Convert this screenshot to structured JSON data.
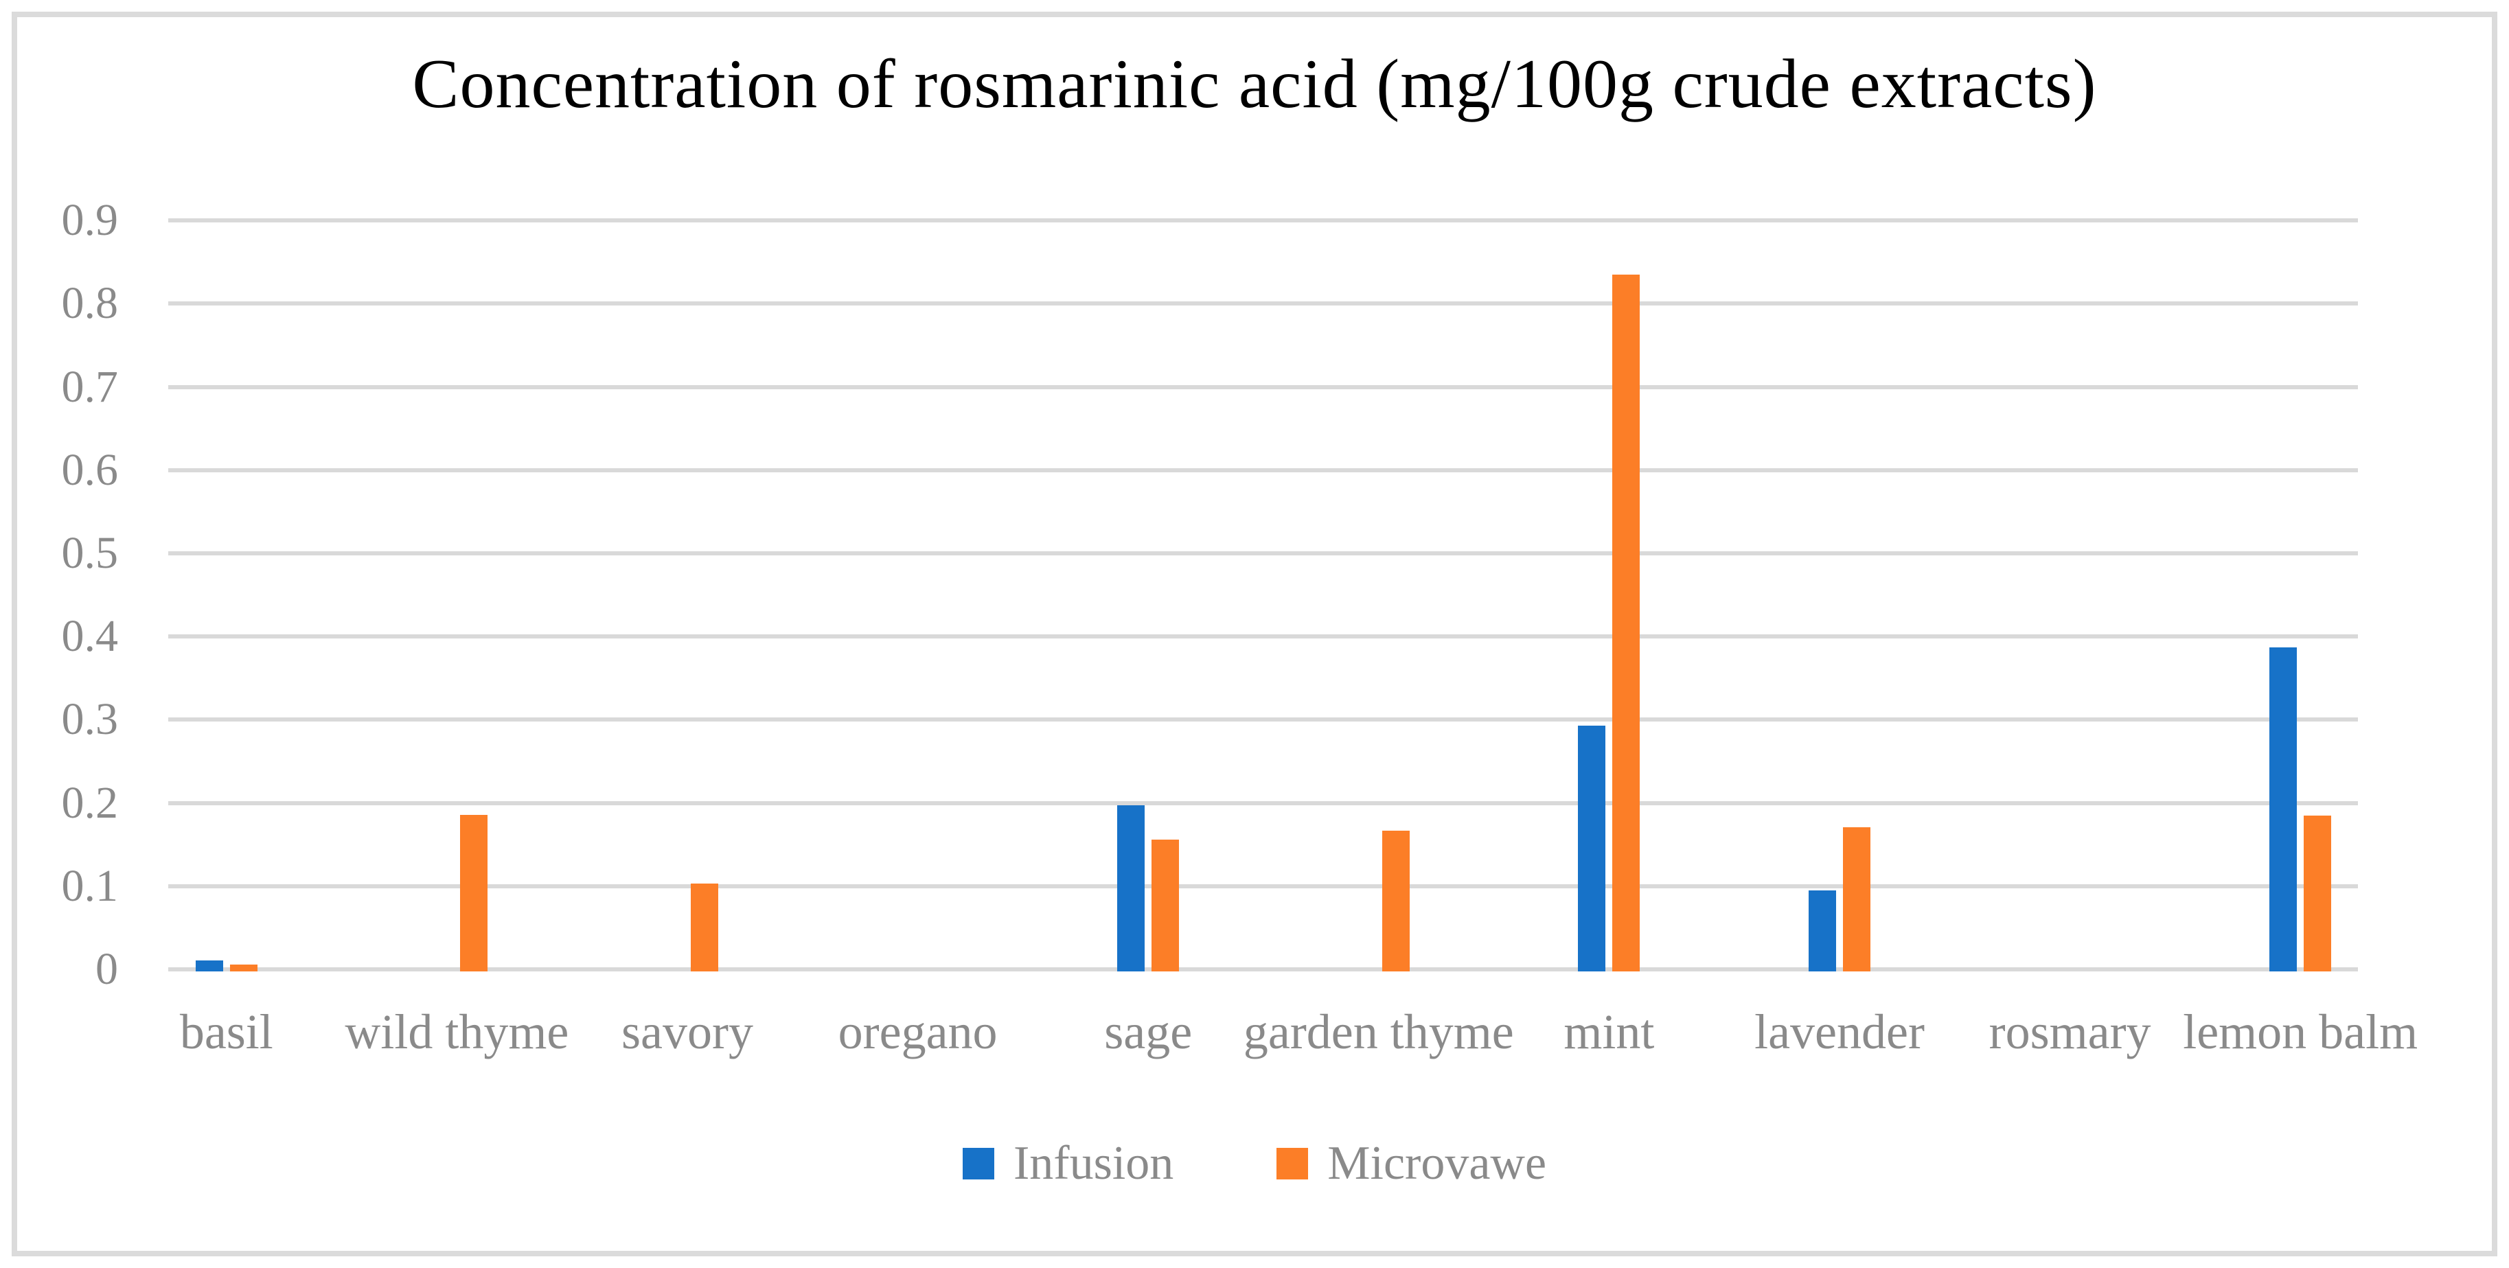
{
  "page": {
    "background": "#ffffff",
    "frame_border_color": "#dbdbdb"
  },
  "chart_data": {
    "type": "bar",
    "title": "Concentration of rosmarinic acid (mg/100g crude extracts)",
    "categories": [
      "basil",
      "wild thyme",
      "savory",
      "oregano",
      "sage",
      "garden thyme",
      "mint",
      "lavender",
      "rosmary",
      "lemon balm"
    ],
    "series": [
      {
        "name": "Infusion",
        "color": "#1772c8",
        "values": [
          0.011,
          0,
          0,
          0,
          0.197,
          0,
          0.293,
          0.095,
          0,
          0.387
        ]
      },
      {
        "name": "Microvawe",
        "color": "#fc7e27",
        "values": [
          0.006,
          0.186,
          0.103,
          0,
          0.156,
          0.167,
          0.835,
          0.171,
          0,
          0.185
        ]
      }
    ],
    "xlabel": "",
    "ylabel": "",
    "ylim": [
      0,
      0.9
    ],
    "ytick_labels": [
      "0",
      "0.1",
      "0.2",
      "0.3",
      "0.4",
      "0.5",
      "0.6",
      "0.7",
      "0.8",
      "0.9"
    ],
    "grid": "horizontal",
    "gridline_color": "#d9d9d9",
    "axis_text_color": "#8a8a8a",
    "title_color": "#000000",
    "legend_position": "bottom"
  }
}
